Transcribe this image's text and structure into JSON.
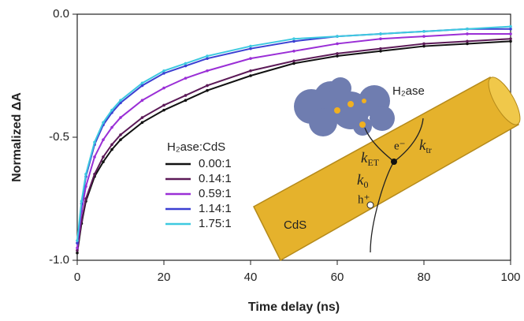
{
  "chart_data": {
    "type": "line",
    "x_label": "Time delay (ns)",
    "y_label": "Normalized ΔA",
    "x": [
      0,
      1,
      2,
      4,
      6,
      8,
      10,
      15,
      20,
      25,
      30,
      40,
      50,
      60,
      70,
      80,
      90,
      100
    ],
    "series": [
      {
        "name": "0.00:1",
        "color": "#111111",
        "values": [
          -0.97,
          -0.85,
          -0.76,
          -0.66,
          -0.6,
          -0.55,
          -0.51,
          -0.44,
          -0.39,
          -0.35,
          -0.31,
          -0.25,
          -0.2,
          -0.17,
          -0.15,
          -0.13,
          -0.12,
          -0.11
        ]
      },
      {
        "name": "0.14:1",
        "color": "#5c1a58",
        "values": [
          -0.96,
          -0.84,
          -0.75,
          -0.65,
          -0.58,
          -0.53,
          -0.49,
          -0.42,
          -0.37,
          -0.33,
          -0.29,
          -0.23,
          -0.19,
          -0.16,
          -0.14,
          -0.12,
          -0.11,
          -0.1
        ]
      },
      {
        "name": "0.59:1",
        "color": "#9a2fd6",
        "values": [
          -0.95,
          -0.8,
          -0.7,
          -0.58,
          -0.51,
          -0.46,
          -0.42,
          -0.35,
          -0.3,
          -0.26,
          -0.23,
          -0.18,
          -0.15,
          -0.12,
          -0.1,
          -0.09,
          -0.08,
          -0.08
        ]
      },
      {
        "name": "1.14:1",
        "color": "#3b3fd2",
        "values": [
          -0.93,
          -0.77,
          -0.66,
          -0.53,
          -0.45,
          -0.4,
          -0.36,
          -0.29,
          -0.24,
          -0.21,
          -0.18,
          -0.14,
          -0.11,
          -0.09,
          -0.08,
          -0.07,
          -0.06,
          -0.06
        ]
      },
      {
        "name": "1.75:1",
        "color": "#3ec9e0",
        "values": [
          -0.92,
          -0.76,
          -0.65,
          -0.52,
          -0.44,
          -0.39,
          -0.35,
          -0.28,
          -0.23,
          -0.2,
          -0.17,
          -0.13,
          -0.1,
          -0.09,
          -0.08,
          -0.07,
          -0.06,
          -0.05
        ]
      }
    ],
    "legend_title": "H₂ase:CdS",
    "xlim": [
      0,
      100
    ],
    "xticks": [
      0,
      20,
      40,
      60,
      80,
      100
    ],
    "ylim": [
      -1.0,
      0.0
    ],
    "yticks": [
      {
        "value": 0,
        "label": "0.0"
      },
      {
        "value": -0.5,
        "label": "-0.5"
      },
      {
        "value": -1.0,
        "label": "-1.0"
      }
    ],
    "inset": {
      "protein_label": "H₂ase",
      "rod_label": "CdS",
      "electron": "e⁻",
      "hole": "h⁺",
      "rates": [
        {
          "text": "k",
          "sub": "ET"
        },
        {
          "text": "k",
          "sub": "tr"
        },
        {
          "text": "k",
          "sub": "0"
        }
      ]
    }
  }
}
